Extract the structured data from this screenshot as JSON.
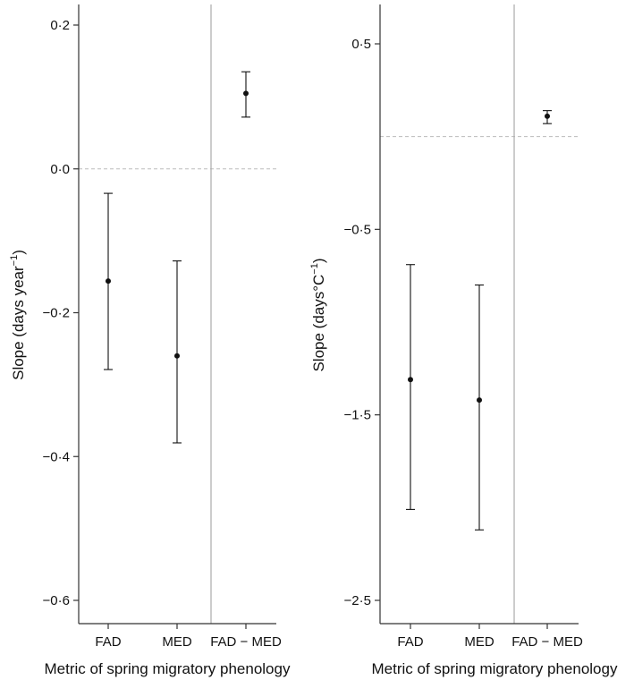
{
  "chart_data": [
    {
      "type": "scatter",
      "subtype": "point-with-error-bars",
      "title": "",
      "xlabel": "Metric of spring migratory phenology",
      "ylabel_main": "Slope (days year",
      "ylabel_sup": "−1",
      "ylabel_tail": ")",
      "categories": [
        "FAD",
        "MED",
        "FAD − MED"
      ],
      "y_ticks": [
        {
          "value": 0.2,
          "label": "0·2"
        },
        {
          "value": 0.0,
          "label": "0·0"
        },
        {
          "value": -0.2,
          "label": "−0·2"
        },
        {
          "value": -0.4,
          "label": "−0·4"
        },
        {
          "value": -0.6,
          "label": "−0·6"
        }
      ],
      "ylim": [
        -0.63,
        0.23
      ],
      "reference_line_y": 0.0,
      "divider_between_categories": [
        1,
        2
      ],
      "points": [
        {
          "category": "FAD",
          "estimate": -0.156,
          "lower": -0.279,
          "upper": -0.034
        },
        {
          "category": "MED",
          "estimate": -0.26,
          "lower": -0.381,
          "upper": -0.128
        },
        {
          "category": "FAD − MED",
          "estimate": 0.105,
          "lower": 0.072,
          "upper": 0.135
        }
      ],
      "grid": false,
      "legend": "none",
      "colors": {
        "points": "#111111",
        "reference_line": "#bbbbbb",
        "divider": "#aaaaaa",
        "axis": "#333333"
      }
    },
    {
      "type": "scatter",
      "subtype": "point-with-error-bars",
      "title": "",
      "xlabel": "Metric of spring migratory phenology",
      "ylabel_main": "Slope (days°C",
      "ylabel_sup": "−1",
      "ylabel_tail": ")",
      "categories": [
        "FAD",
        "MED",
        "FAD − MED"
      ],
      "y_ticks": [
        {
          "value": 0.5,
          "label": "0·5"
        },
        {
          "value": -0.5,
          "label": "−0·5"
        },
        {
          "value": -1.5,
          "label": "−1·5"
        },
        {
          "value": -2.5,
          "label": "−2·5"
        }
      ],
      "ylim": [
        -2.63,
        0.72
      ],
      "reference_line_y": 0.0,
      "divider_between_categories": [
        1,
        2
      ],
      "points": [
        {
          "category": "FAD",
          "estimate": -1.31,
          "lower": -2.01,
          "upper": -0.69
        },
        {
          "category": "MED",
          "estimate": -1.42,
          "lower": -2.12,
          "upper": -0.8
        },
        {
          "category": "FAD − MED",
          "estimate": 0.11,
          "lower": 0.07,
          "upper": 0.14
        }
      ],
      "grid": false,
      "legend": "none",
      "colors": {
        "points": "#111111",
        "reference_line": "#bbbbbb",
        "divider": "#aaaaaa",
        "axis": "#333333"
      }
    }
  ]
}
